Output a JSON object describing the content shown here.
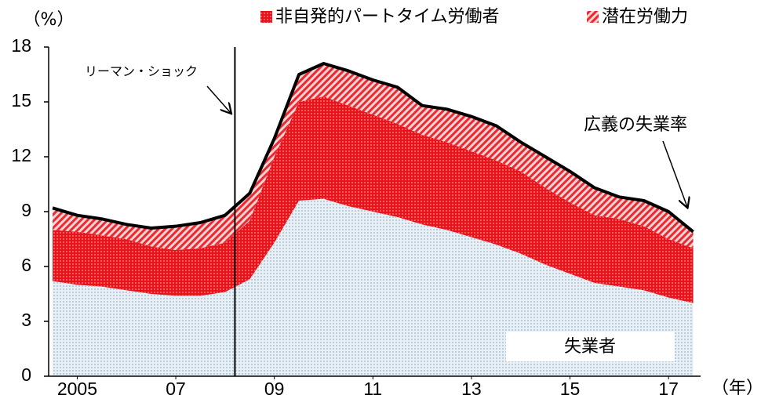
{
  "chart_data": {
    "type": "stacked_area",
    "unit_label": "（%）",
    "x_unit_label": "（年）",
    "x": [
      2005,
      2005.5,
      2006,
      2006.5,
      2007,
      2007.5,
      2008,
      2008.5,
      2009,
      2009.5,
      2010,
      2010.5,
      2011,
      2011.5,
      2012,
      2012.5,
      2013,
      2013.5,
      2014,
      2014.5,
      2015,
      2015.5,
      2016,
      2016.5,
      2017,
      2017.5,
      2018
    ],
    "series": [
      {
        "name": "失業者",
        "color": "#cddbe6",
        "values": [
          5.2,
          5.0,
          4.9,
          4.7,
          4.5,
          4.4,
          4.4,
          4.6,
          5.3,
          7.3,
          9.6,
          9.7,
          9.3,
          9.0,
          8.7,
          8.3,
          8.0,
          7.6,
          7.2,
          6.7,
          6.1,
          5.6,
          5.1,
          4.9,
          4.7,
          4.3,
          4.0
        ]
      },
      {
        "name": "非自発的パートタイム労働者",
        "color": "#e8141c",
        "values": [
          2.8,
          2.9,
          2.8,
          2.8,
          2.6,
          2.5,
          2.6,
          2.7,
          3.2,
          4.7,
          5.4,
          5.6,
          5.5,
          5.3,
          5.1,
          4.9,
          4.8,
          4.7,
          4.6,
          4.5,
          4.2,
          3.9,
          3.7,
          3.7,
          3.5,
          3.2,
          3.0
        ]
      },
      {
        "name": "潜在労働力",
        "color": "#ef4a4f",
        "values": [
          1.2,
          0.9,
          0.9,
          0.8,
          1.0,
          1.3,
          1.4,
          1.5,
          1.5,
          1.0,
          1.5,
          1.8,
          1.9,
          1.9,
          2.0,
          1.6,
          1.8,
          1.9,
          1.9,
          1.6,
          1.7,
          1.7,
          1.5,
          1.2,
          1.4,
          1.5,
          0.9
        ]
      }
    ],
    "total_line": {
      "name": "広義の失業率",
      "color": "#000000",
      "values": [
        9.2,
        8.8,
        8.6,
        8.3,
        8.1,
        8.2,
        8.4,
        8.8,
        10.0,
        13.0,
        16.5,
        17.1,
        16.7,
        16.2,
        15.8,
        14.8,
        14.6,
        14.2,
        13.7,
        12.8,
        12.0,
        11.2,
        10.3,
        9.8,
        9.6,
        9.0,
        7.9
      ]
    },
    "annotations": [
      {
        "text": "リーマン・ショック",
        "x": 2008.7
      }
    ],
    "xlim": [
      2004.92,
      2018.15
    ],
    "xticks": [
      {
        "value": 2005.5,
        "label": "2005"
      },
      {
        "value": 2007.5,
        "label": "07"
      },
      {
        "value": 2009.5,
        "label": "09"
      },
      {
        "value": 2011.5,
        "label": "11"
      },
      {
        "value": 2013.5,
        "label": "13"
      },
      {
        "value": 2015.5,
        "label": "15"
      },
      {
        "value": 2017.5,
        "label": "17"
      }
    ],
    "ylim": [
      0,
      18
    ],
    "yticks": [
      0,
      3,
      6,
      9,
      12,
      15,
      18
    ]
  }
}
